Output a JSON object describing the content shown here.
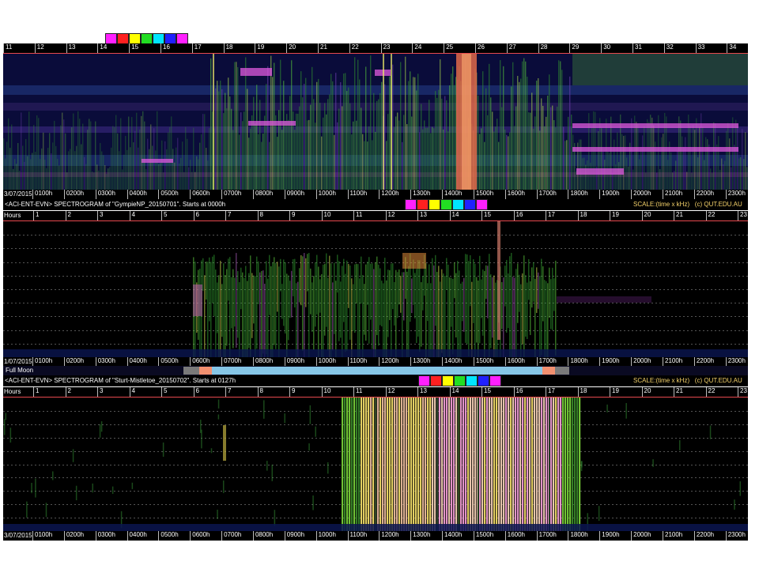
{
  "top_axis": {
    "hour_labels": [
      "11",
      "12",
      "13",
      "14",
      "15",
      "16",
      "17",
      "18",
      "19",
      "20",
      "21",
      "22",
      "23",
      "24",
      "25",
      "26",
      "27",
      "28",
      "29",
      "30",
      "31",
      "32",
      "33",
      "34"
    ]
  },
  "swatch_colors": [
    "#ff20ff",
    "#ff2020",
    "#ffff00",
    "#22dd22",
    "#00e5ff",
    "#2020ff",
    "#ff20ff"
  ],
  "panels": [
    {
      "id": "panel1",
      "date_label": "3/07/2015",
      "time_labels": [
        "0100h",
        "0200h",
        "0300h",
        "0400h",
        "0500h",
        "0600h",
        "0700h",
        "0800h",
        "0900h",
        "1000h",
        "1100h",
        "1200h",
        "1300h",
        "1400h",
        "1500h",
        "1600h",
        "1700h",
        "1800h",
        "1900h",
        "2000h",
        "2100h",
        "2200h",
        "2300h"
      ]
    },
    {
      "id": "panel2",
      "title": "<ACI-ENT-EVN> SPECTROGRAM  of \"GympieNP_20150701\".    Starts at 0000h",
      "scale_label": "SCALE:(time x kHz)",
      "copyright": "(c) QUT.EDU.AU",
      "hours_label": "Hours",
      "hour_labels": [
        "1",
        "2",
        "3",
        "4",
        "5",
        "6",
        "7",
        "8",
        "9",
        "10",
        "11",
        "12",
        "13",
        "14",
        "15",
        "16",
        "17",
        "18",
        "19",
        "20",
        "21",
        "22",
        "23"
      ],
      "date_label": "1/07/2015",
      "time_labels": [
        "0100h",
        "0200h",
        "0300h",
        "0400h",
        "0500h",
        "0600h",
        "0700h",
        "0800h",
        "0900h",
        "1000h",
        "1100h",
        "1200h",
        "1300h",
        "1400h",
        "1500h",
        "1600h",
        "1700h",
        "1800h",
        "1900h",
        "2000h",
        "2100h",
        "2200h",
        "2300h"
      ]
    },
    {
      "id": "panel3",
      "moon_label": "Full Moon",
      "title": "<ACI-ENT-EVN> SPECTROGRAM  of \"Sturt-Mistletoe_20150702\".    Starts at 0127h",
      "scale_label": "SCALE:(time x kHz)",
      "copyright": "(c) QUT.EDU.AU",
      "hours_label": "Hours",
      "hour_labels": [
        "1",
        "2",
        "3",
        "4",
        "5",
        "6",
        "7",
        "8",
        "9",
        "10",
        "11",
        "12",
        "13",
        "14",
        "15",
        "16",
        "17",
        "18",
        "19",
        "20",
        "21",
        "22",
        "23"
      ],
      "date_label": "3/07/2015",
      "time_labels": [
        "0100h",
        "0200h",
        "0300h",
        "0400h",
        "0500h",
        "0600h",
        "0700h",
        "0800h",
        "0900h",
        "1000h",
        "1100h",
        "1200h",
        "1300h",
        "1400h",
        "1500h",
        "1600h",
        "1700h",
        "1800h",
        "1900h",
        "2000h",
        "2100h",
        "2200h",
        "2300h"
      ]
    }
  ],
  "colors": {
    "scale_text": "#f5d26a",
    "redline": "#e8494e",
    "moon_daylight": "#86c6e6",
    "moon_twilight": "#f29070",
    "moon_night": "#7a7a7a"
  }
}
